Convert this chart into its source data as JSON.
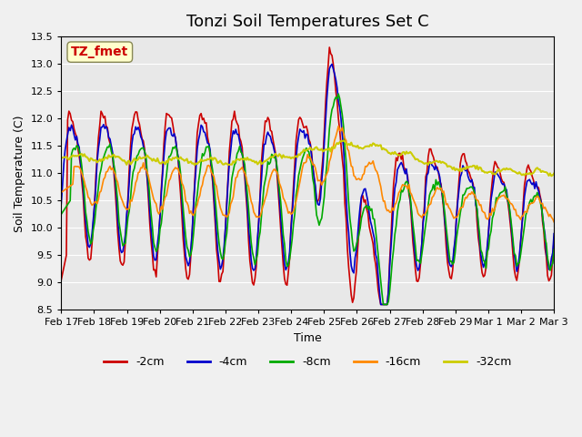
{
  "title": "Tonzi Soil Temperatures Set C",
  "xlabel": "Time",
  "ylabel": "Soil Temperature (C)",
  "ylim": [
    8.5,
    13.5
  ],
  "yticks": [
    8.5,
    9.0,
    9.5,
    10.0,
    10.5,
    11.0,
    11.5,
    12.0,
    12.5,
    13.0,
    13.5
  ],
  "xtick_labels": [
    "Feb 17",
    "Feb 18",
    "Feb 19",
    "Feb 20",
    "Feb 21",
    "Feb 22",
    "Feb 23",
    "Feb 24",
    "Feb 25",
    "Feb 26",
    "Feb 27",
    "Feb 28",
    "Feb 29",
    "Mar 1",
    "Mar 2",
    "Mar 3"
  ],
  "legend_labels": [
    "-2cm",
    "-4cm",
    "-8cm",
    "-16cm",
    "-32cm"
  ],
  "line_colors": [
    "#cc0000",
    "#0000cc",
    "#00aa00",
    "#ff8800",
    "#cccc00"
  ],
  "line_widths": [
    1.2,
    1.2,
    1.2,
    1.2,
    1.5
  ],
  "annotation_text": "TZ_fmet",
  "annotation_color": "#cc0000",
  "annotation_bg": "#ffffcc",
  "plot_bg": "#e8e8e8",
  "fig_bg": "#f0f0f0",
  "grid_color": "#ffffff",
  "title_fontsize": 13,
  "n_points": 385
}
